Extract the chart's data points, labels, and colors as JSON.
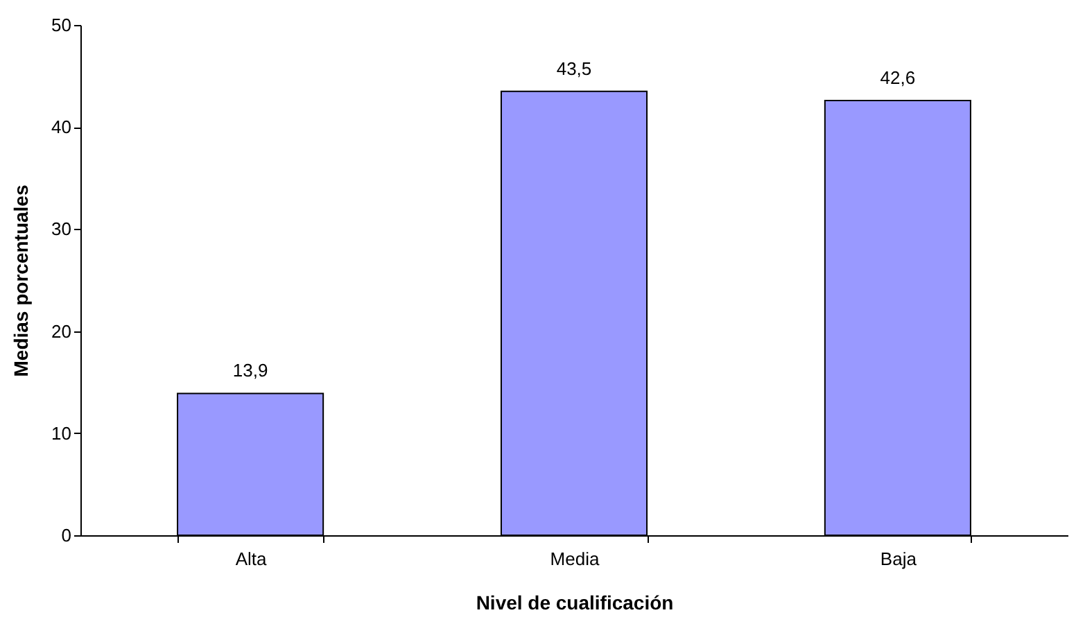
{
  "chart_data": {
    "type": "bar",
    "xlabel": "Nivel de cualificación",
    "ylabel": "Medias porcentuales",
    "categories": [
      "Alta",
      "Media",
      "Baja"
    ],
    "values": [
      13.9,
      43.5,
      42.6
    ],
    "value_labels": [
      "13,9",
      "43,5",
      "42,6"
    ],
    "color": "#9999ff",
    "ylim": [
      0,
      50
    ],
    "yticks": [
      0,
      10,
      20,
      30,
      40,
      50
    ],
    "grid": false
  }
}
